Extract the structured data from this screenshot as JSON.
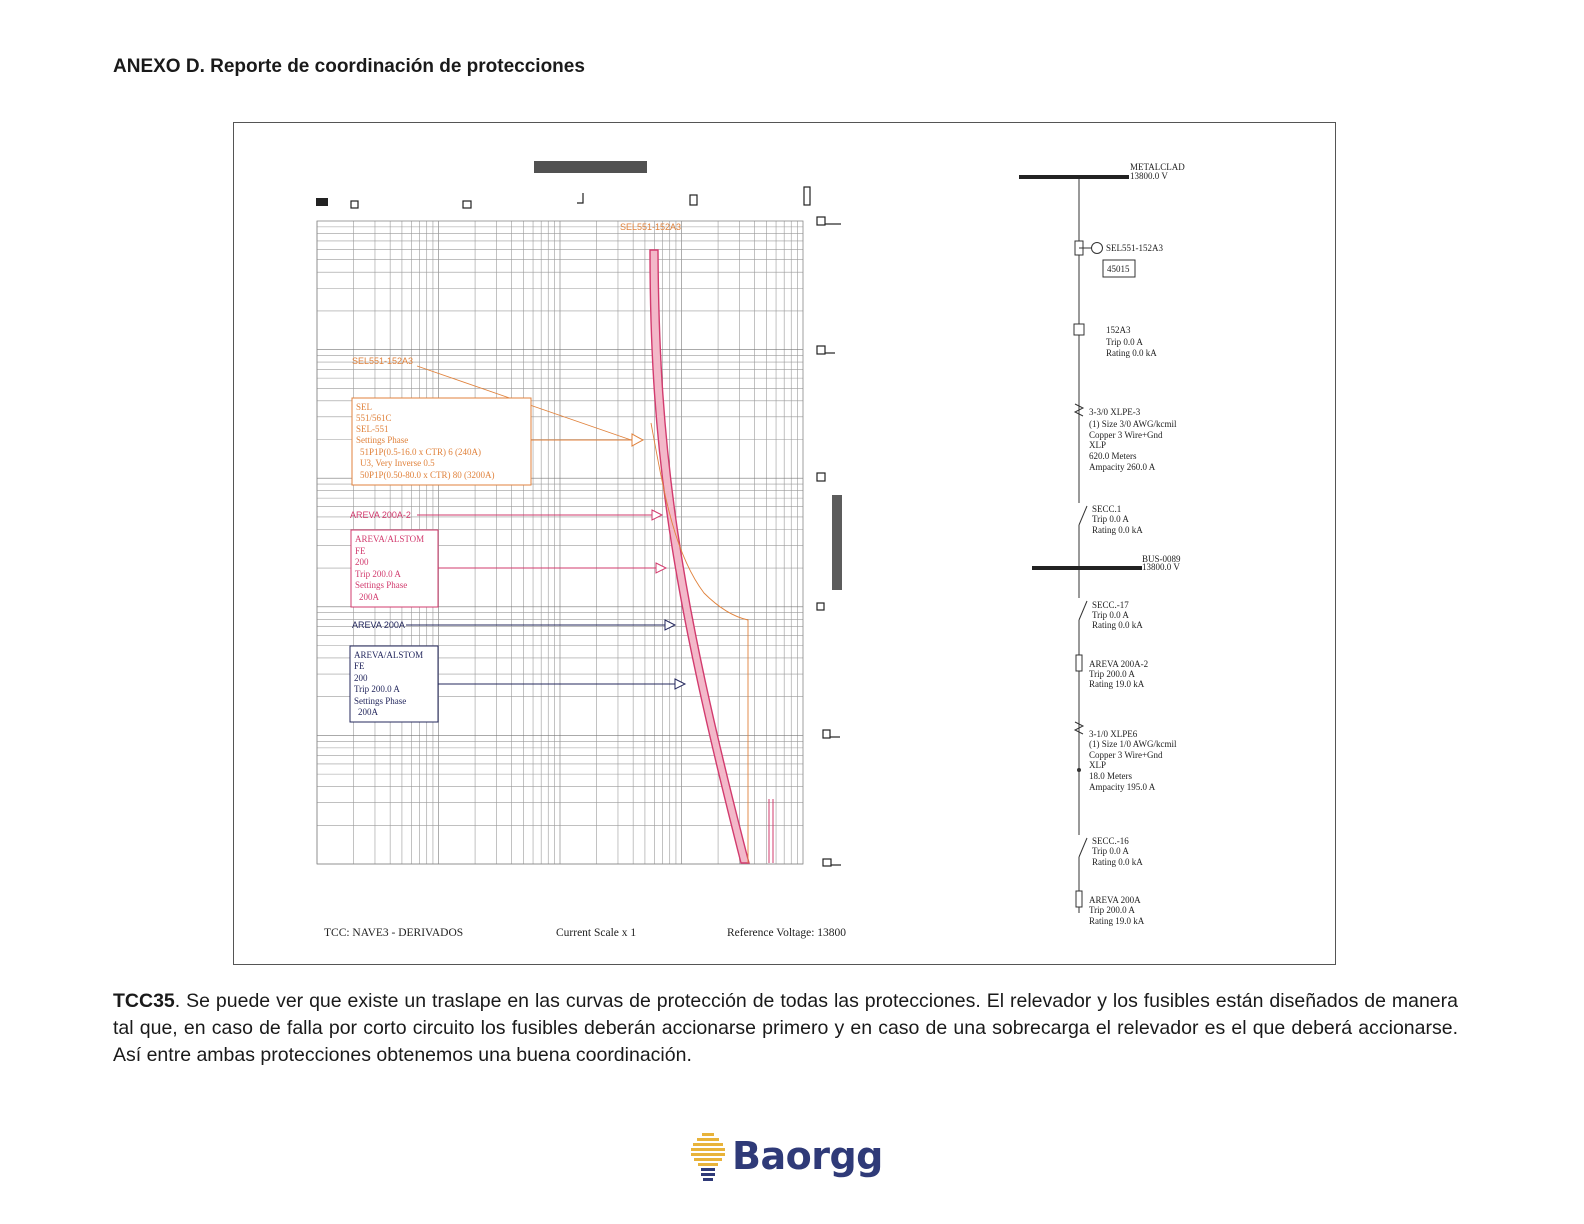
{
  "page": {
    "heading": "ANEXO D. Reporte de coordinación de protecciones"
  },
  "tcc": {
    "top_curve_label": "SEL551-152A3",
    "footer": {
      "tcc_name": "TCC:  NAVE3 - DERIVADOS",
      "current_scale": "Current Scale  x 1",
      "reference_voltage": "Reference Voltage: 13800"
    },
    "relay": {
      "label": "SEL551-152A3",
      "box_lines": [
        "SEL",
        "551/561C",
        "SEL-551",
        "Settings Phase",
        "  51P1P(0.5-16.0 x CTR) 6 (240A)",
        "  U3, Very Inverse 0.5",
        "  50P1P(0.50-80.0 x CTR) 80 (3200A)"
      ],
      "color": "#e0823c"
    },
    "fuse2": {
      "label": "AREVA 200A-2",
      "box_lines": [
        "AREVA/ALSTOM",
        "FE",
        "200",
        "Trip 200.0 A",
        "Settings Phase",
        "  200A"
      ],
      "color": "#d23b6e"
    },
    "fuse1": {
      "label": "AREVA 200A",
      "box_lines": [
        "AREVA/ALSTOM",
        "FE",
        "200",
        "Trip 200.0 A",
        "Settings Phase",
        "  200A"
      ],
      "color": "#24285e"
    }
  },
  "oneline": {
    "bus_top": {
      "name": "METALCLAD",
      "voltage": "13800.0 V"
    },
    "relay": {
      "name": "SEL551-152A3",
      "id": "45015"
    },
    "breaker": {
      "name": "152A3",
      "trip": "Trip 0.0 A",
      "rating": "Rating 0.0 kA"
    },
    "cable1": {
      "lines": [
        "3-3/0 XLPE-3",
        "(1) Size 3/0 AWG/kcmil",
        "Copper 3 Wire+Gnd",
        "XLP",
        "620.0 Meters",
        "Ampacity 260.0 A"
      ]
    },
    "secc1": {
      "name": "SECC.1",
      "trip": "Trip 0.0 A",
      "rating": "Rating 0.0 kA"
    },
    "bus_mid": {
      "name": "BUS-0089",
      "voltage": "13800.0 V"
    },
    "secc17": {
      "name": "SECC.-17",
      "trip": "Trip 0.0 A",
      "rating": "Rating 0.0 kA"
    },
    "fuse2": {
      "name": "AREVA 200A-2",
      "trip": "Trip 200.0 A",
      "rating": "Rating 19.0 kA"
    },
    "cable2": {
      "lines": [
        "3-1/0 XLPE6",
        "(1) Size 1/0 AWG/kcmil",
        "Copper 3 Wire+Gnd",
        "XLP",
        "18.0 Meters",
        "Ampacity 195.0 A"
      ]
    },
    "secc16": {
      "name": "SECC.-16",
      "trip": "Trip 0.0 A",
      "rating": "Rating 0.0 kA"
    },
    "fuse1": {
      "name": "AREVA 200A",
      "trip": "Trip 200.0 A",
      "rating": "Rating 19.0 kA"
    }
  },
  "caption": {
    "label": "TCC35",
    "text": ". Se puede ver que existe un traslape en las curvas de protección de todas las protecciones. El relevador y los fusibles están diseñados de manera tal que, en caso de falla por corto circuito los fusibles deberán accionarse primero y en caso de una sobrecarga el relevador es el que deberá accionarse. Así entre ambas protecciones obtenemos una buena coordinación."
  },
  "logo": {
    "text": "Baorgg",
    "color": "#2f3a78"
  }
}
